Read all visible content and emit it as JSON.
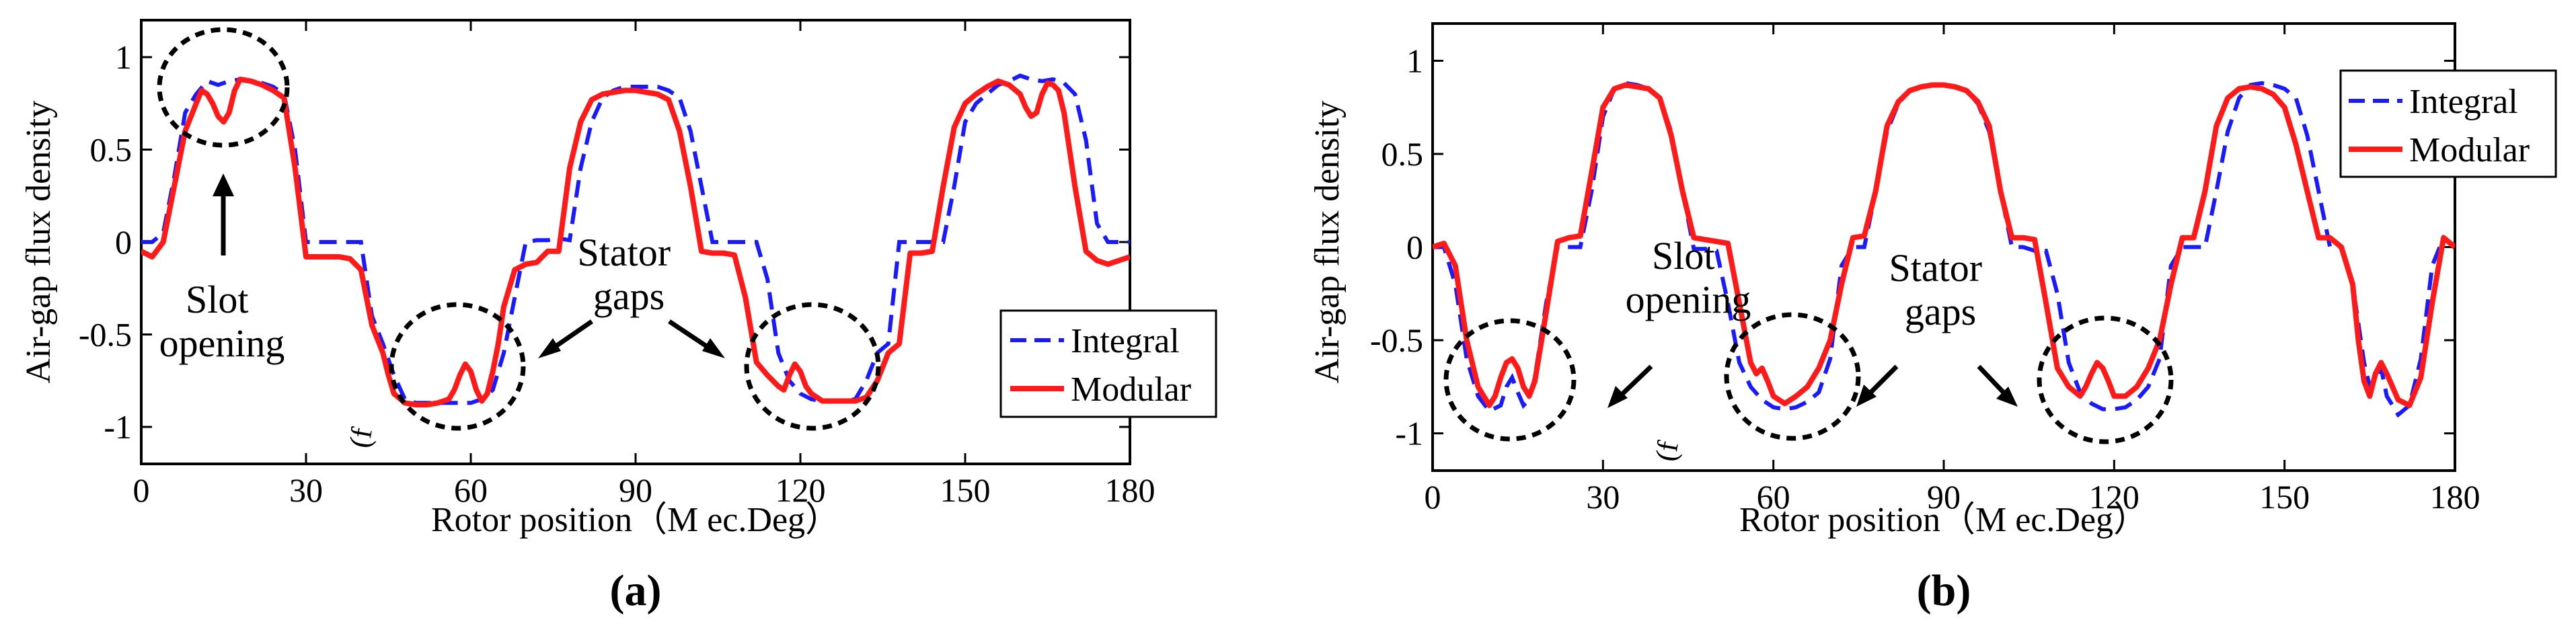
{
  "chart_data": [
    {
      "type": "line",
      "panel_label": "(a)",
      "xlabel": "Rotor position（M ec.Deg）",
      "ylabel": "Air-gap flux density",
      "xlim": [
        0,
        180
      ],
      "ylim": [
        -1.2,
        1.2
      ],
      "xticks": [
        0,
        30,
        60,
        90,
        120,
        150,
        180
      ],
      "yticks": [
        1,
        0.5,
        0,
        -0.5,
        -1
      ],
      "ytick_labels": [
        "1",
        "0.5",
        "0",
        "-0.5",
        "-1"
      ],
      "legend": {
        "placement": "lower-right",
        "entries": [
          "Integral",
          "Modular"
        ]
      },
      "annotations": [
        {
          "text": [
            "Slot",
            "opening"
          ]
        },
        {
          "text": [
            "Stator",
            "gaps"
          ]
        }
      ],
      "stray_text": "(f",
      "series": [
        {
          "name": "Integral",
          "color": "#1a1aff",
          "style": "dashed",
          "x": [
            0,
            2,
            4,
            6,
            8,
            10,
            12,
            14,
            16,
            18,
            20,
            22,
            24,
            26,
            28,
            30,
            32,
            36,
            40,
            42,
            44,
            46,
            48,
            50,
            52,
            54,
            56,
            58,
            60,
            62,
            64,
            66,
            68,
            70,
            72,
            74,
            76,
            78,
            80,
            82,
            84,
            86,
            88,
            90,
            92,
            94,
            96,
            98,
            100,
            102,
            104,
            106,
            108,
            110,
            112,
            114,
            116,
            118,
            120,
            122,
            124,
            126,
            128,
            130,
            132,
            134,
            136,
            138,
            140,
            142,
            144,
            146,
            148,
            150,
            152,
            154,
            156,
            158,
            160,
            162,
            164,
            166,
            168,
            170,
            172,
            174,
            176,
            178,
            180
          ],
          "y": [
            0,
            0,
            0.05,
            0.35,
            0.7,
            0.8,
            0.87,
            0.85,
            0.87,
            0.88,
            0.87,
            0.86,
            0.84,
            0.8,
            0.5,
            0,
            0,
            0,
            0,
            -0.4,
            -0.55,
            -0.72,
            -0.85,
            -0.87,
            -0.87,
            -0.87,
            -0.87,
            -0.87,
            -0.87,
            -0.85,
            -0.8,
            -0.6,
            -0.3,
            0,
            0.01,
            0.01,
            0.02,
            0.01,
            0.4,
            0.65,
            0.78,
            0.82,
            0.84,
            0.84,
            0.84,
            0.84,
            0.82,
            0.78,
            0.6,
            0.3,
            0,
            0,
            0,
            0,
            0,
            -0.2,
            -0.6,
            -0.75,
            -0.82,
            -0.85,
            -0.86,
            -0.86,
            -0.86,
            -0.85,
            -0.75,
            -0.6,
            -0.55,
            0,
            0,
            0,
            0,
            0,
            0.3,
            0.65,
            0.75,
            0.8,
            0.85,
            0.87,
            0.9,
            0.88,
            0.87,
            0.88,
            0.86,
            0.8,
            0.55,
            0.1,
            0,
            0,
            0
          ]
        },
        {
          "name": "Modular",
          "color": "#ff1a1a",
          "style": "solid",
          "x": [
            0,
            2,
            4,
            6,
            8,
            10,
            11,
            12,
            13,
            14,
            15,
            16,
            17,
            18,
            20,
            22,
            24,
            26,
            28,
            30,
            32,
            36,
            38,
            40,
            42,
            44,
            45,
            46,
            48,
            50,
            52,
            54,
            56,
            57,
            58,
            59,
            60,
            61,
            62,
            63,
            64,
            65,
            66,
            68,
            70,
            72,
            74,
            76,
            78,
            80,
            82,
            84,
            86,
            88,
            90,
            92,
            94,
            96,
            98,
            100,
            102,
            104,
            106,
            108,
            110,
            112,
            114,
            116,
            117,
            118,
            119,
            120,
            121,
            122,
            123,
            124,
            126,
            128,
            130,
            132,
            134,
            136,
            138,
            140,
            142,
            144,
            146,
            148,
            150,
            152,
            154,
            156,
            158,
            160,
            161,
            162,
            163,
            164,
            165,
            166,
            167,
            168,
            170,
            172,
            174,
            176,
            178,
            180
          ],
          "y": [
            -0.05,
            -0.08,
            0,
            0.3,
            0.6,
            0.75,
            0.82,
            0.8,
            0.75,
            0.68,
            0.65,
            0.7,
            0.82,
            0.88,
            0.87,
            0.85,
            0.82,
            0.78,
            0.4,
            -0.08,
            -0.08,
            -0.08,
            -0.09,
            -0.15,
            -0.45,
            -0.6,
            -0.72,
            -0.82,
            -0.87,
            -0.88,
            -0.88,
            -0.87,
            -0.85,
            -0.8,
            -0.72,
            -0.66,
            -0.7,
            -0.8,
            -0.86,
            -0.82,
            -0.7,
            -0.55,
            -0.35,
            -0.15,
            -0.12,
            -0.11,
            -0.05,
            -0.05,
            0.4,
            0.65,
            0.77,
            0.8,
            0.81,
            0.82,
            0.82,
            0.81,
            0.8,
            0.77,
            0.6,
            0.3,
            -0.05,
            -0.06,
            -0.06,
            -0.07,
            -0.3,
            -0.65,
            -0.72,
            -0.78,
            -0.8,
            -0.72,
            -0.66,
            -0.7,
            -0.78,
            -0.82,
            -0.84,
            -0.86,
            -0.86,
            -0.86,
            -0.86,
            -0.84,
            -0.75,
            -0.6,
            -0.55,
            -0.06,
            -0.06,
            -0.05,
            0.3,
            0.62,
            0.75,
            0.8,
            0.84,
            0.87,
            0.85,
            0.8,
            0.73,
            0.68,
            0.7,
            0.8,
            0.86,
            0.85,
            0.82,
            0.7,
            0.3,
            -0.05,
            -0.1,
            -0.12,
            -0.1,
            -0.08
          ]
        }
      ]
    },
    {
      "type": "line",
      "panel_label": "(b)",
      "xlabel": "Rotor position（M ec.Deg）",
      "ylabel": "Air-gap flux density",
      "xlim": [
        0,
        180
      ],
      "ylim": [
        -1.2,
        1.2
      ],
      "xticks": [
        0,
        30,
        60,
        90,
        120,
        150,
        180
      ],
      "yticks": [
        1,
        0.5,
        0,
        -0.5,
        -1
      ],
      "ytick_labels": [
        "1",
        "0.5",
        "0",
        "-0.5",
        "-1"
      ],
      "legend": {
        "placement": "top-right",
        "entries": [
          "Integral",
          "Modular"
        ]
      },
      "annotations": [
        {
          "text": [
            "Slot",
            "opening"
          ]
        },
        {
          "text": [
            "Stator",
            "gaps"
          ]
        }
      ],
      "stray_text": "(f",
      "series": [
        {
          "name": "Integral",
          "color": "#1a1aff",
          "style": "dashed",
          "x": [
            0,
            2,
            4,
            6,
            8,
            10,
            12,
            13,
            14,
            15,
            16,
            17,
            18,
            20,
            22,
            24,
            26,
            28,
            30,
            32,
            34,
            36,
            38,
            40,
            42,
            44,
            46,
            48,
            50,
            52,
            54,
            56,
            58,
            60,
            62,
            64,
            66,
            68,
            70,
            72,
            74,
            76,
            78,
            80,
            82,
            84,
            86,
            88,
            90,
            92,
            94,
            96,
            98,
            100,
            102,
            104,
            106,
            108,
            110,
            112,
            114,
            116,
            118,
            120,
            122,
            124,
            126,
            128,
            130,
            132,
            134,
            136,
            138,
            140,
            142,
            144,
            146,
            148,
            150,
            152,
            154,
            156,
            158,
            160,
            162,
            164,
            165,
            166,
            167,
            168,
            170,
            172,
            174,
            176,
            178,
            180
          ],
          "y": [
            0,
            0,
            -0.2,
            -0.6,
            -0.8,
            -0.88,
            -0.85,
            -0.75,
            -0.7,
            -0.78,
            -0.85,
            -0.82,
            -0.7,
            -0.3,
            0,
            0,
            0,
            0.3,
            0.7,
            0.85,
            0.88,
            0.87,
            0.85,
            0.8,
            0.62,
            0.3,
            -0.01,
            -0.01,
            -0.02,
            -0.3,
            -0.62,
            -0.75,
            -0.82,
            -0.86,
            -0.87,
            -0.86,
            -0.83,
            -0.78,
            -0.6,
            -0.1,
            0,
            0,
            0.3,
            0.62,
            0.77,
            0.84,
            0.86,
            0.87,
            0.87,
            0.86,
            0.84,
            0.77,
            0.62,
            0.3,
            0,
            0,
            -0.02,
            -0.02,
            -0.25,
            -0.62,
            -0.78,
            -0.84,
            -0.87,
            -0.87,
            -0.86,
            -0.82,
            -0.75,
            -0.6,
            -0.1,
            0,
            0,
            0,
            0.3,
            0.62,
            0.8,
            0.87,
            0.88,
            0.87,
            0.85,
            0.8,
            0.6,
            0.3,
            0,
            0,
            -0.2,
            -0.62,
            -0.75,
            -0.7,
            -0.65,
            -0.8,
            -0.9,
            -0.85,
            -0.6,
            -0.1,
            0.05,
            0
          ]
        },
        {
          "name": "Modular",
          "color": "#ff1a1a",
          "style": "solid",
          "x": [
            0,
            2,
            4,
            6,
            8,
            10,
            11,
            12,
            13,
            14,
            15,
            16,
            17,
            18,
            20,
            22,
            24,
            26,
            28,
            30,
            32,
            34,
            36,
            38,
            40,
            42,
            44,
            46,
            48,
            50,
            52,
            54,
            56,
            57,
            58,
            59,
            60,
            62,
            64,
            66,
            68,
            70,
            72,
            74,
            76,
            78,
            80,
            82,
            84,
            86,
            88,
            90,
            92,
            94,
            96,
            98,
            100,
            102,
            104,
            106,
            108,
            110,
            112,
            114,
            115,
            116,
            117,
            118,
            119,
            120,
            122,
            124,
            126,
            128,
            130,
            132,
            134,
            136,
            138,
            140,
            142,
            144,
            146,
            148,
            150,
            152,
            154,
            156,
            158,
            160,
            162,
            163,
            164,
            165,
            166,
            167,
            168,
            170,
            172,
            174,
            176,
            178,
            180
          ],
          "y": [
            0,
            0.02,
            -0.1,
            -0.5,
            -0.75,
            -0.85,
            -0.8,
            -0.7,
            -0.62,
            -0.6,
            -0.65,
            -0.75,
            -0.8,
            -0.72,
            -0.35,
            0.03,
            0.05,
            0.06,
            0.4,
            0.75,
            0.85,
            0.87,
            0.86,
            0.85,
            0.8,
            0.6,
            0.3,
            0.05,
            0.04,
            0.03,
            0.02,
            -0.3,
            -0.62,
            -0.68,
            -0.65,
            -0.72,
            -0.8,
            -0.84,
            -0.8,
            -0.75,
            -0.65,
            -0.5,
            -0.2,
            0.05,
            0.06,
            0.3,
            0.65,
            0.78,
            0.84,
            0.86,
            0.87,
            0.87,
            0.86,
            0.84,
            0.78,
            0.65,
            0.3,
            0.05,
            0.05,
            0.04,
            -0.3,
            -0.65,
            -0.75,
            -0.8,
            -0.75,
            -0.68,
            -0.62,
            -0.65,
            -0.72,
            -0.8,
            -0.8,
            -0.75,
            -0.65,
            -0.5,
            -0.2,
            0.05,
            0.05,
            0.3,
            0.65,
            0.8,
            0.85,
            0.86,
            0.85,
            0.82,
            0.75,
            0.55,
            0.3,
            0.05,
            0.05,
            0,
            -0.2,
            -0.5,
            -0.72,
            -0.8,
            -0.68,
            -0.62,
            -0.68,
            -0.82,
            -0.85,
            -0.7,
            -0.3,
            0.05,
            0
          ]
        }
      ]
    }
  ]
}
